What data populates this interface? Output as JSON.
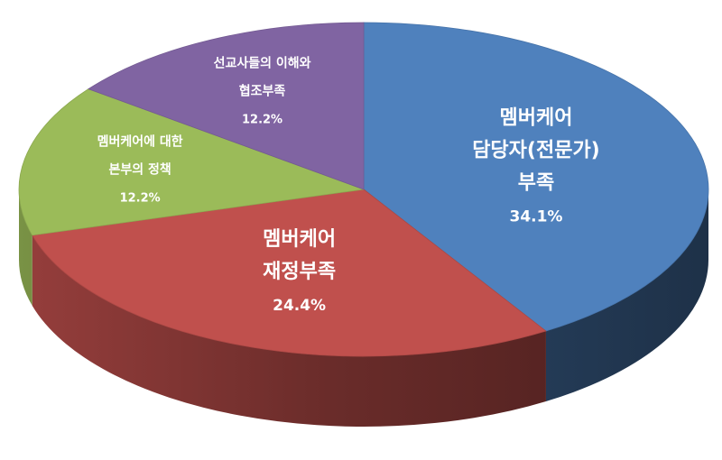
{
  "chart_data": {
    "type": "pie",
    "style": "3d",
    "start_direction": "top",
    "slices": [
      {
        "lines": [
          "멤버케어",
          "담당자(전문가)",
          "부족"
        ],
        "value": 34.1,
        "value_label": "34.1%",
        "color": "#4F81BD"
      },
      {
        "lines": [
          "멤버케어",
          "재정부족"
        ],
        "value": 24.4,
        "value_label": "24.4%",
        "color": "#C0504D"
      },
      {
        "lines": [
          "멤버케어에 대한",
          "본부의 정책"
        ],
        "value": 12.2,
        "value_label": "12.2%",
        "color": "#9BBB59"
      },
      {
        "lines": [
          "선교사들의 이해와",
          "협조부족"
        ],
        "value": 12.2,
        "value_label": "12.2%",
        "color": "#8064A2"
      }
    ]
  }
}
